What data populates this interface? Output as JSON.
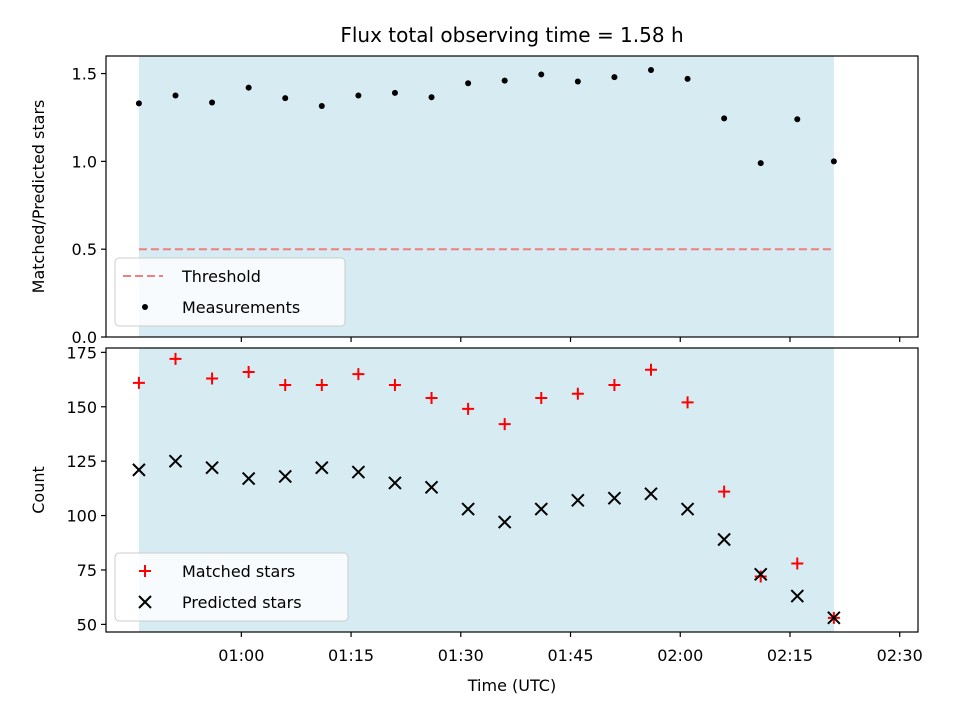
{
  "chart_data": {
    "type": "scatter",
    "title": "Flux total observing time = 1.58 h",
    "xlabel": "Time (UTC)",
    "x_tick_labels": [
      "01:00",
      "01:15",
      "01:30",
      "01:45",
      "02:00",
      "02:15",
      "02:30"
    ],
    "x_tick_values_min": [
      60,
      75,
      90,
      105,
      120,
      135,
      150
    ],
    "xlim_min": [
      41.5,
      152.5
    ],
    "observing_window_min": [
      46,
      141
    ],
    "colors": {
      "span": "#add8e6",
      "threshold": "#f08080",
      "matched": "#ff0000",
      "predicted": "#000000",
      "measurement": "#000000"
    },
    "panels": [
      {
        "ylabel": "Matched/Predicted stars",
        "ylim": [
          0,
          1.6
        ],
        "yticks": [
          0.0,
          0.5,
          1.0,
          1.5
        ],
        "ytick_labels": [
          "0.0",
          "0.5",
          "1.0",
          "1.5"
        ],
        "legend_position": "lower-left",
        "series": [
          {
            "name": "Threshold",
            "kind": "dashed-line",
            "color": "#f08080",
            "x": [
              46,
              141
            ],
            "y": [
              0.5,
              0.5
            ]
          },
          {
            "name": "Measurements",
            "kind": "dot",
            "color": "#000000",
            "x": [
              46,
              51,
              56,
              61,
              66,
              71,
              76,
              81,
              86,
              91,
              96,
              101,
              106,
              111,
              116,
              121,
              126,
              131,
              136,
              141
            ],
            "y": [
              1.33,
              1.375,
              1.335,
              1.42,
              1.36,
              1.315,
              1.375,
              1.39,
              1.365,
              1.445,
              1.46,
              1.495,
              1.455,
              1.48,
              1.52,
              1.47,
              1.245,
              0.99,
              1.24,
              1.0
            ]
          }
        ]
      },
      {
        "ylabel": "Count",
        "ylim": [
          46.5,
          177
        ],
        "yticks": [
          50,
          75,
          100,
          125,
          150,
          175
        ],
        "ytick_labels": [
          "50",
          "75",
          "100",
          "125",
          "150",
          "175"
        ],
        "legend_position": "lower-left",
        "series": [
          {
            "name": "Matched stars",
            "kind": "plus",
            "color": "#ff0000",
            "x": [
              46,
              51,
              56,
              61,
              66,
              71,
              76,
              81,
              86,
              91,
              96,
              101,
              106,
              111,
              116,
              121,
              126,
              131,
              136,
              141
            ],
            "y": [
              161,
              172,
              163,
              166,
              160,
              160,
              165,
              160,
              154,
              149,
              142,
              154,
              156,
              160,
              167,
              152,
              111,
              72,
              78,
              53
            ]
          },
          {
            "name": "Predicted stars",
            "kind": "x",
            "color": "#000000",
            "x": [
              46,
              51,
              56,
              61,
              66,
              71,
              76,
              81,
              86,
              91,
              96,
              101,
              106,
              111,
              116,
              121,
              126,
              131,
              136,
              141
            ],
            "y": [
              121,
              125,
              122,
              117,
              118,
              122,
              120,
              115,
              113,
              103,
              97,
              103,
              107,
              108,
              110,
              103,
              89,
              73,
              63,
              53
            ]
          }
        ]
      }
    ]
  }
}
